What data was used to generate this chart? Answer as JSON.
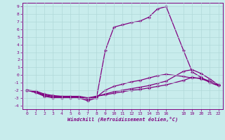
{
  "xlabel": "Windchill (Refroidissement éolien,°C)",
  "bg_color": "#c8ecec",
  "line_color": "#800080",
  "grid_color": "#aadddd",
  "xlim": [
    -0.5,
    22.5
  ],
  "ylim": [
    -4.5,
    9.5
  ],
  "yticks": [
    -4,
    -3,
    -2,
    -1,
    0,
    1,
    2,
    3,
    4,
    5,
    6,
    7,
    8,
    9
  ],
  "xticks": [
    0,
    1,
    2,
    3,
    4,
    5,
    6,
    7,
    8,
    9,
    10,
    11,
    12,
    13,
    14,
    15,
    16,
    18,
    19,
    20,
    21,
    22
  ],
  "series": [
    {
      "x": [
        0,
        1,
        2,
        3,
        4,
        5,
        6,
        7,
        8,
        9,
        10,
        11,
        12,
        13,
        14,
        15,
        16,
        18,
        19,
        20,
        21,
        22
      ],
      "y": [
        -2,
        -2.3,
        -2.8,
        -3.0,
        -3.0,
        -3.0,
        -3.0,
        -3.4,
        -3.0,
        3.2,
        6.3,
        6.6,
        6.9,
        7.1,
        7.6,
        8.7,
        9.0,
        3.2,
        0.4,
        -0.3,
        -1.0,
        -1.4
      ]
    },
    {
      "x": [
        0,
        1,
        2,
        3,
        4,
        5,
        6,
        7,
        8,
        9,
        10,
        11,
        12,
        13,
        14,
        15,
        16,
        18,
        19,
        20,
        21,
        22
      ],
      "y": [
        -2,
        -2.3,
        -2.7,
        -2.9,
        -2.9,
        -2.9,
        -2.9,
        -3.2,
        -2.9,
        -2.0,
        -1.5,
        -1.2,
        -0.9,
        -0.7,
        -0.4,
        -0.1,
        0.1,
        -0.2,
        -0.4,
        -0.4,
        -0.8,
        -1.3
      ]
    },
    {
      "x": [
        0,
        1,
        2,
        3,
        4,
        5,
        6,
        7,
        8,
        9,
        10,
        11,
        12,
        13,
        14,
        15,
        16,
        18,
        19,
        20,
        21,
        22
      ],
      "y": [
        -2,
        -2.2,
        -2.6,
        -2.8,
        -2.8,
        -2.8,
        -2.9,
        -3.1,
        -2.8,
        -2.5,
        -2.2,
        -2.0,
        -1.8,
        -1.6,
        -1.4,
        -1.1,
        -0.8,
        0.5,
        0.7,
        0.2,
        -0.5,
        -1.3
      ]
    },
    {
      "x": [
        0,
        1,
        2,
        3,
        4,
        5,
        6,
        7,
        8,
        9,
        10,
        11,
        12,
        13,
        14,
        15,
        16,
        18,
        19,
        20,
        21,
        22
      ],
      "y": [
        -2,
        -2.1,
        -2.5,
        -2.7,
        -2.8,
        -2.8,
        -2.8,
        -3.0,
        -2.8,
        -2.6,
        -2.4,
        -2.2,
        -2.0,
        -1.9,
        -1.7,
        -1.5,
        -1.3,
        -0.7,
        -0.3,
        -0.5,
        -0.9,
        -1.4
      ]
    }
  ]
}
